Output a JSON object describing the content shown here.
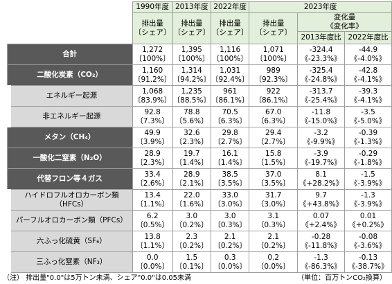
{
  "header": {
    "years": [
      "1990年度",
      "2013年度",
      "2022年度",
      "2023年度"
    ],
    "emission": "排出量",
    "share": "〔シェア〕",
    "change": "変化量",
    "rate": "《変化率》",
    "vs": [
      "2013年度比",
      "2022年度比"
    ]
  },
  "table": {
    "rows": [
      {
        "label": "合計",
        "cells": [
          [
            "1,272",
            "〔100%〕"
          ],
          [
            "1,395",
            "〔100%〕"
          ],
          [
            "1,116",
            "〔100%〕"
          ],
          [
            "1,071",
            "〔100%〕"
          ],
          [
            "-324.4",
            "《-23.3%》"
          ],
          [
            "-44.9",
            "《-4.0%》"
          ]
        ]
      },
      {
        "label": "二酸化炭素（CO₂）",
        "cells": [
          [
            "1,160",
            "〔91.2%〕"
          ],
          [
            "1,314",
            "〔94.2%〕"
          ],
          [
            "1,031",
            "〔92.4%〕"
          ],
          [
            "989",
            "〔92.3%〕"
          ],
          [
            "-325.4",
            "《-24.8%》"
          ],
          [
            "-42.8",
            "《-4.1%》"
          ]
        ],
        "children": [
          {
            "label": "エネルギー起源",
            "cells": [
              [
                "1,068",
                "〔83.9%〕"
              ],
              [
                "1,235",
                "〔88.5%〕"
              ],
              [
                "961",
                "〔86.1%〕"
              ],
              [
                "922",
                "〔86.1%〕"
              ],
              [
                "-313.7",
                "《-25.4%》"
              ],
              [
                "-39.3",
                "《-4.1%》"
              ]
            ]
          },
          {
            "label": "非エネルギー起源",
            "cells": [
              [
                "92.8",
                "〔7.3%〕"
              ],
              [
                "78.8",
                "〔5.6%〕"
              ],
              [
                "70.5",
                "〔6.3%〕"
              ],
              [
                "67.0",
                "〔6.3%〕"
              ],
              [
                "-11.8",
                "《-15.0%》"
              ],
              [
                "-3.5",
                "《-5.0%》"
              ]
            ]
          }
        ]
      },
      {
        "label": "メタン（CH₄）",
        "cells": [
          [
            "49.9",
            "〔3.9%〕"
          ],
          [
            "32.6",
            "〔2.3%〕"
          ],
          [
            "29.8",
            "〔2.7%〕"
          ],
          [
            "29.4",
            "〔2.7%〕"
          ],
          [
            "-3.2",
            "《-9.9%》"
          ],
          [
            "-0.39",
            "《-1.3%》"
          ]
        ]
      },
      {
        "label": "一酸化二窒素（N₂O）",
        "cells": [
          [
            "28.9",
            "〔2.3%〕"
          ],
          [
            "19.7",
            "〔1.4%〕"
          ],
          [
            "16.1",
            "〔1.4%〕"
          ],
          [
            "15.8",
            "〔1.5%〕"
          ],
          [
            "-3.9",
            "《-19.7%》"
          ],
          [
            "-0.29",
            "《-1.8%》"
          ]
        ]
      },
      {
        "label": "代替フロン等４ガス",
        "cells": [
          [
            "33.4",
            "〔2.6%〕"
          ],
          [
            "28.9",
            "〔2.1%〕"
          ],
          [
            "38.5",
            "〔3.5%〕"
          ],
          [
            "37.0",
            "〔3.5%〕"
          ],
          [
            "8.1",
            "《+28.2%》"
          ],
          [
            "-1.5",
            "《-3.9%》"
          ]
        ],
        "children": [
          {
            "label": "ハイドロフルオロカーボン類（HFCs）",
            "cells": [
              [
                "13.4",
                "〔1.1%〕"
              ],
              [
                "22.0",
                "〔1.6%〕"
              ],
              [
                "33.0",
                "〔3.0%〕"
              ],
              [
                "31.7",
                "〔3.0%〕"
              ],
              [
                "9.7",
                "《+43.8%》"
              ],
              [
                "-1.3",
                "《-3.9%》"
              ]
            ]
          },
          {
            "label": "パーフルオロカーボン類（PFCs）",
            "cells": [
              [
                "6.2",
                "〔0.5%〕"
              ],
              [
                "3.0",
                "〔0.2%〕"
              ],
              [
                "3.0",
                "〔0.3%〕"
              ],
              [
                "3.1",
                "〔0.3%〕"
              ],
              [
                "0.07",
                "《+2.4%》"
              ],
              [
                "0.01",
                "《+0.2%》"
              ]
            ]
          },
          {
            "label": "六ふっ化硫黄（SF₆）",
            "cells": [
              [
                "13.8",
                "〔1.1%〕"
              ],
              [
                "2.3",
                "〔0.2%〕"
              ],
              [
                "2.1",
                "〔0.2%〕"
              ],
              [
                "2.1",
                "〔0.2%〕"
              ],
              [
                "-0.28",
                "《-11.8%》"
              ],
              [
                "-0.08",
                "《-3.6%》"
              ]
            ]
          },
          {
            "label": "三ふっ化窒素（NF₃）",
            "cells": [
              [
                "0.0",
                "〔0.0%〕"
              ],
              [
                "1.5",
                "〔0.1%〕"
              ],
              [
                "0.3",
                "〔0.0%〕"
              ],
              [
                "0.2",
                "〔0.0%〕"
              ],
              [
                "-1.3",
                "《-86.3%》"
              ],
              [
                "-0.13",
                "《-38.7%》"
              ]
            ]
          }
        ]
      }
    ]
  },
  "footer": {
    "note": "（注） 排出量\"0.0\"は5万トン未満、シェア\"0.0\"は0.05未満",
    "unit": "（単位：百万トンCO₂換算）"
  }
}
